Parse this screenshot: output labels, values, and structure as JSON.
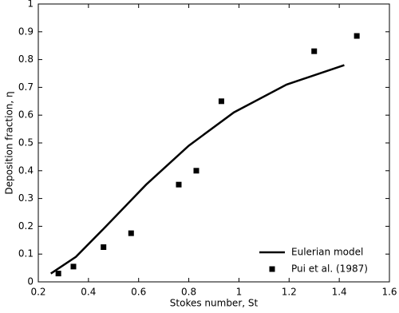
{
  "chart_data": {
    "type": "line",
    "xlabel": "Stokes number, St",
    "ylabel": "Deposition fraction, η",
    "xlim": [
      0.2,
      1.6
    ],
    "xticks": [
      0.2,
      0.4,
      0.6,
      0.8,
      1,
      1.2,
      1.4,
      1.6
    ],
    "ylim": [
      0,
      1
    ],
    "yticks": [
      0,
      0.1,
      0.2,
      0.3,
      0.4,
      0.5,
      0.6,
      0.7,
      0.8,
      0.9,
      1
    ],
    "legend": "lower right",
    "series": [
      {
        "name": "Eulerian model",
        "type": "line",
        "color": "#000000",
        "x": [
          0.25,
          0.35,
          0.47,
          0.63,
          0.8,
          0.98,
          1.19,
          1.42
        ],
        "values": [
          0.03,
          0.09,
          0.2,
          0.35,
          0.49,
          0.61,
          0.71,
          0.78
        ]
      },
      {
        "name": "Pui et al. (1987)",
        "type": "scatter",
        "color": "#000000",
        "x": [
          0.28,
          0.34,
          0.46,
          0.57,
          0.76,
          0.83,
          0.93,
          1.3,
          1.47
        ],
        "values": [
          0.03,
          0.055,
          0.125,
          0.175,
          0.35,
          0.4,
          0.65,
          0.83,
          0.885
        ]
      }
    ]
  }
}
